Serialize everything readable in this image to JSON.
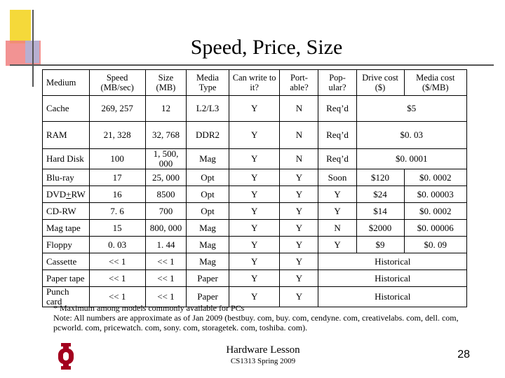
{
  "title": "Speed, Price, Size",
  "table": {
    "headers": [
      "Medium",
      "Speed (MB/sec)",
      "Size (MB)",
      "Media Type",
      "Can write to it?",
      "Port- able?",
      "Pop- ular?",
      "Drive cost ($)",
      "Media cost ($/MB)"
    ],
    "rows": [
      {
        "medium": "Cache",
        "speed": "269, 257",
        "size": "12",
        "type": "L2/L3",
        "write": "Y",
        "portable": "N",
        "popular": "Req’d",
        "cost": "$5"
      },
      {
        "medium": "RAM",
        "speed": "21, 328",
        "size": "32, 768",
        "type": "DDR2",
        "write": "Y",
        "portable": "N",
        "popular": "Req’d",
        "cost": "$0. 03"
      },
      {
        "medium": "Hard Disk",
        "speed": "100",
        "size": "1, 500, 000",
        "type": "Mag",
        "write": "Y",
        "portable": "N",
        "popular": "Req’d",
        "cost": "$0. 0001"
      },
      {
        "medium": "Blu-ray",
        "speed": "17",
        "size": "25, 000",
        "type": "Opt",
        "write": "Y",
        "portable": "Y",
        "popular": "Soon",
        "drive": "$120",
        "media": "$0. 0002"
      },
      {
        "medium_pre": "DVD",
        "medium_u": "+",
        "medium_post": "RW",
        "speed": "16",
        "size": "8500",
        "type": "Opt",
        "write": "Y",
        "portable": "Y",
        "popular": "Y",
        "drive": "$24",
        "media": "$0. 00003"
      },
      {
        "medium": "CD-RW",
        "speed": "7. 6",
        "size": "700",
        "type": "Opt",
        "write": "Y",
        "portable": "Y",
        "popular": "Y",
        "drive": "$14",
        "media": "$0. 0002"
      },
      {
        "medium": "Mag tape",
        "speed": "15",
        "size": "800, 000",
        "type": "Mag",
        "write": "Y",
        "portable": "Y",
        "popular": "N",
        "drive": "$2000",
        "media": "$0. 00006"
      },
      {
        "medium": "Floppy",
        "speed": "0. 03",
        "size": "1. 44",
        "type": "Mag",
        "write": "Y",
        "portable": "Y",
        "popular": "Y",
        "drive": "$9",
        "media": "$0. 09"
      },
      {
        "medium": "Cassette",
        "speed": "<< 1",
        "size": "<< 1",
        "type": "Mag",
        "write": "Y",
        "portable": "Y",
        "status": "Historical"
      },
      {
        "medium": "Paper tape",
        "speed": "<< 1",
        "size": "<< 1",
        "type": "Paper",
        "write": "Y",
        "portable": "Y",
        "status": "Historical"
      },
      {
        "medium": "Punch card",
        "speed": "<< 1",
        "size": "<< 1",
        "type": "Paper",
        "write": "Y",
        "portable": "Y",
        "status": "Historical"
      }
    ]
  },
  "notes": {
    "line1": "* Maximum among models commonly available for PCs",
    "line2": "Note: All numbers are approximate as of Jan 2009 (bestbuy. com, buy. com, cendyne. com, creativelabs. com, dell. com, pcworld. com, pricewatch. com, sony. com, storagetek. com, toshiba. com)."
  },
  "footer": {
    "course": "Hardware Lesson",
    "term": "CS1313 Spring 2009",
    "page": "28",
    "logo_color": "#a3001e"
  }
}
